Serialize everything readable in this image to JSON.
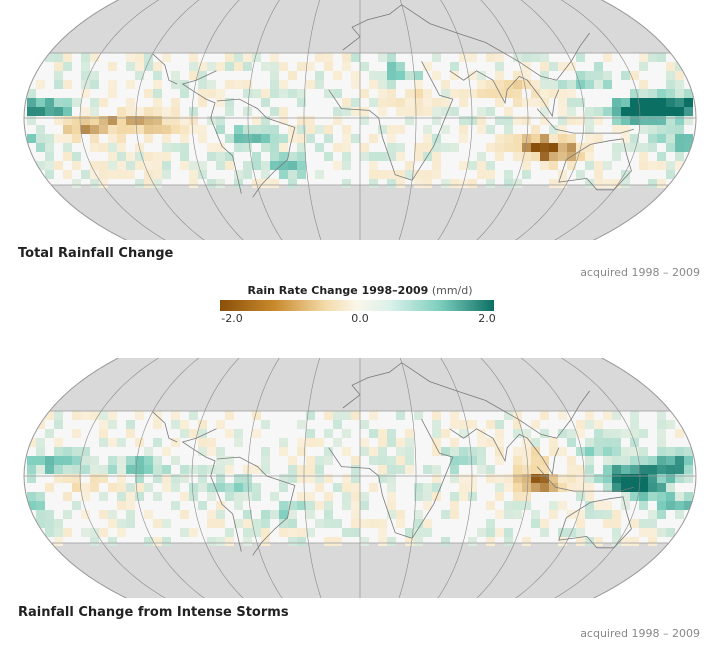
{
  "maps": [
    {
      "caption": "Total Rainfall Change",
      "acquired": "acquired 1998 – 2009",
      "hotspots": [
        {
          "lon": 148,
          "lat": 4,
          "value": 2.0
        },
        {
          "lon": 160,
          "lat": 5,
          "value": 1.8
        },
        {
          "lon": 175,
          "lat": 6,
          "value": 1.5
        },
        {
          "lon": -165,
          "lat": 5,
          "value": 1.2
        },
        {
          "lon": 175,
          "lat": -12,
          "value": 1.1
        },
        {
          "lon": 95,
          "lat": -15,
          "value": -1.6
        },
        {
          "lon": 110,
          "lat": -18,
          "value": -1.4
        },
        {
          "lon": 80,
          "lat": 15,
          "value": -1.0
        },
        {
          "lon": -150,
          "lat": -5,
          "value": -1.1
        },
        {
          "lon": -130,
          "lat": -3,
          "value": -1.0
        },
        {
          "lon": -110,
          "lat": -4,
          "value": -0.9
        },
        {
          "lon": -60,
          "lat": -10,
          "value": 1.0
        },
        {
          "lon": -40,
          "lat": -25,
          "value": 0.9
        },
        {
          "lon": 20,
          "lat": 25,
          "value": 0.8
        },
        {
          "lon": 30,
          "lat": 10,
          "value": -0.7
        },
        {
          "lon": 125,
          "lat": 20,
          "value": 0.9
        }
      ]
    },
    {
      "caption": "Rainfall Change from Intense Storms",
      "acquired": "acquired 1998 – 2009",
      "hotspots": [
        {
          "lon": 145,
          "lat": 0,
          "value": 2.0
        },
        {
          "lon": 150,
          "lat": -5,
          "value": 1.7
        },
        {
          "lon": 170,
          "lat": 6,
          "value": 1.4
        },
        {
          "lon": -160,
          "lat": 6,
          "value": 1.2
        },
        {
          "lon": -120,
          "lat": 6,
          "value": 1.0
        },
        {
          "lon": 175,
          "lat": -15,
          "value": 1.1
        },
        {
          "lon": 95,
          "lat": -3,
          "value": -1.8
        },
        {
          "lon": 90,
          "lat": 10,
          "value": -0.8
        },
        {
          "lon": 130,
          "lat": 15,
          "value": 0.8
        },
        {
          "lon": -150,
          "lat": -3,
          "value": -0.7
        },
        {
          "lon": -70,
          "lat": -5,
          "value": 0.8
        },
        {
          "lon": -40,
          "lat": -20,
          "value": 0.7
        },
        {
          "lon": 60,
          "lat": 8,
          "value": 0.7
        }
      ]
    }
  ],
  "legend": {
    "title": "Rain Rate Change 1998–2009",
    "units": "(mm/d)",
    "ticks": [
      "-2.0",
      "0.0",
      "2.0"
    ],
    "min": -2.0,
    "max": 2.0,
    "colors": [
      "#8a4f0a",
      "#f3d9a6",
      "#fbf6ea",
      "#7fcfbf",
      "#0b6f63"
    ]
  }
}
